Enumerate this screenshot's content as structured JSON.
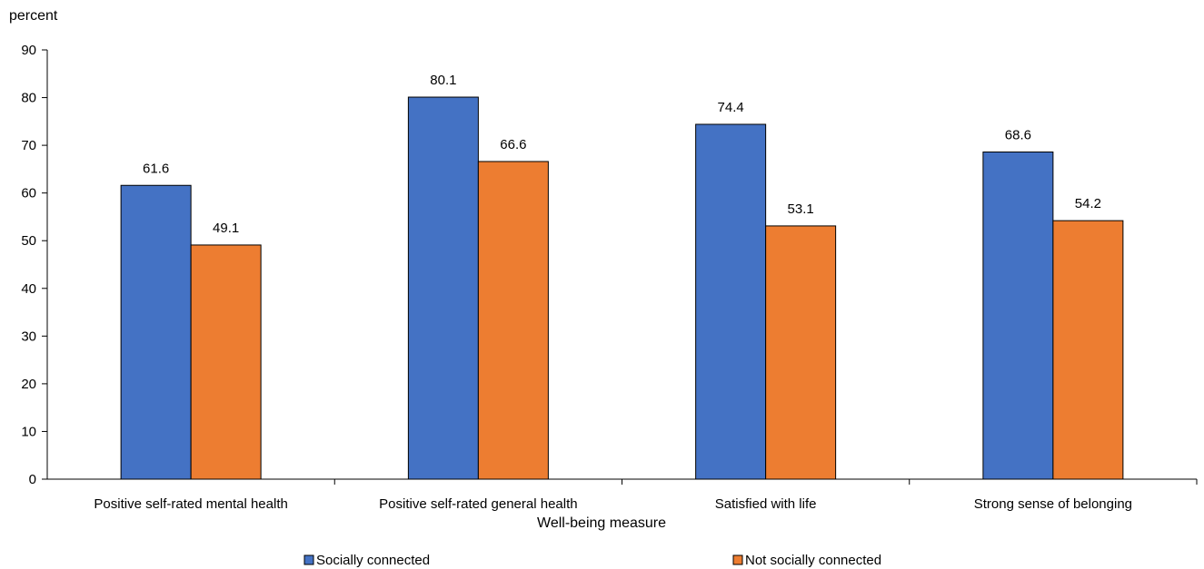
{
  "chart_data": {
    "type": "bar",
    "title": "",
    "ylabel": "percent",
    "xlabel": "Well-being measure",
    "ylim": [
      0,
      90
    ],
    "yticks": [
      0,
      10,
      20,
      30,
      40,
      50,
      60,
      70,
      80,
      90
    ],
    "categories": [
      "Positive self-rated mental health",
      "Positive self-rated general health",
      "Satisfied with life",
      "Strong sense of belonging"
    ],
    "series": [
      {
        "name": "Socially connected",
        "color": "#4472C4",
        "values": [
          61.6,
          80.1,
          74.4,
          68.6
        ],
        "labels": [
          "61.6",
          "80.1",
          "74.4",
          "68.6"
        ]
      },
      {
        "name": "Not socially connected",
        "color": "#ED7D31",
        "values": [
          49.1,
          66.6,
          53.1,
          54.2
        ],
        "labels": [
          "49.1",
          "66.6",
          "53.1",
          "54.2"
        ]
      }
    ],
    "grid": false,
    "legend_position": "bottom"
  }
}
